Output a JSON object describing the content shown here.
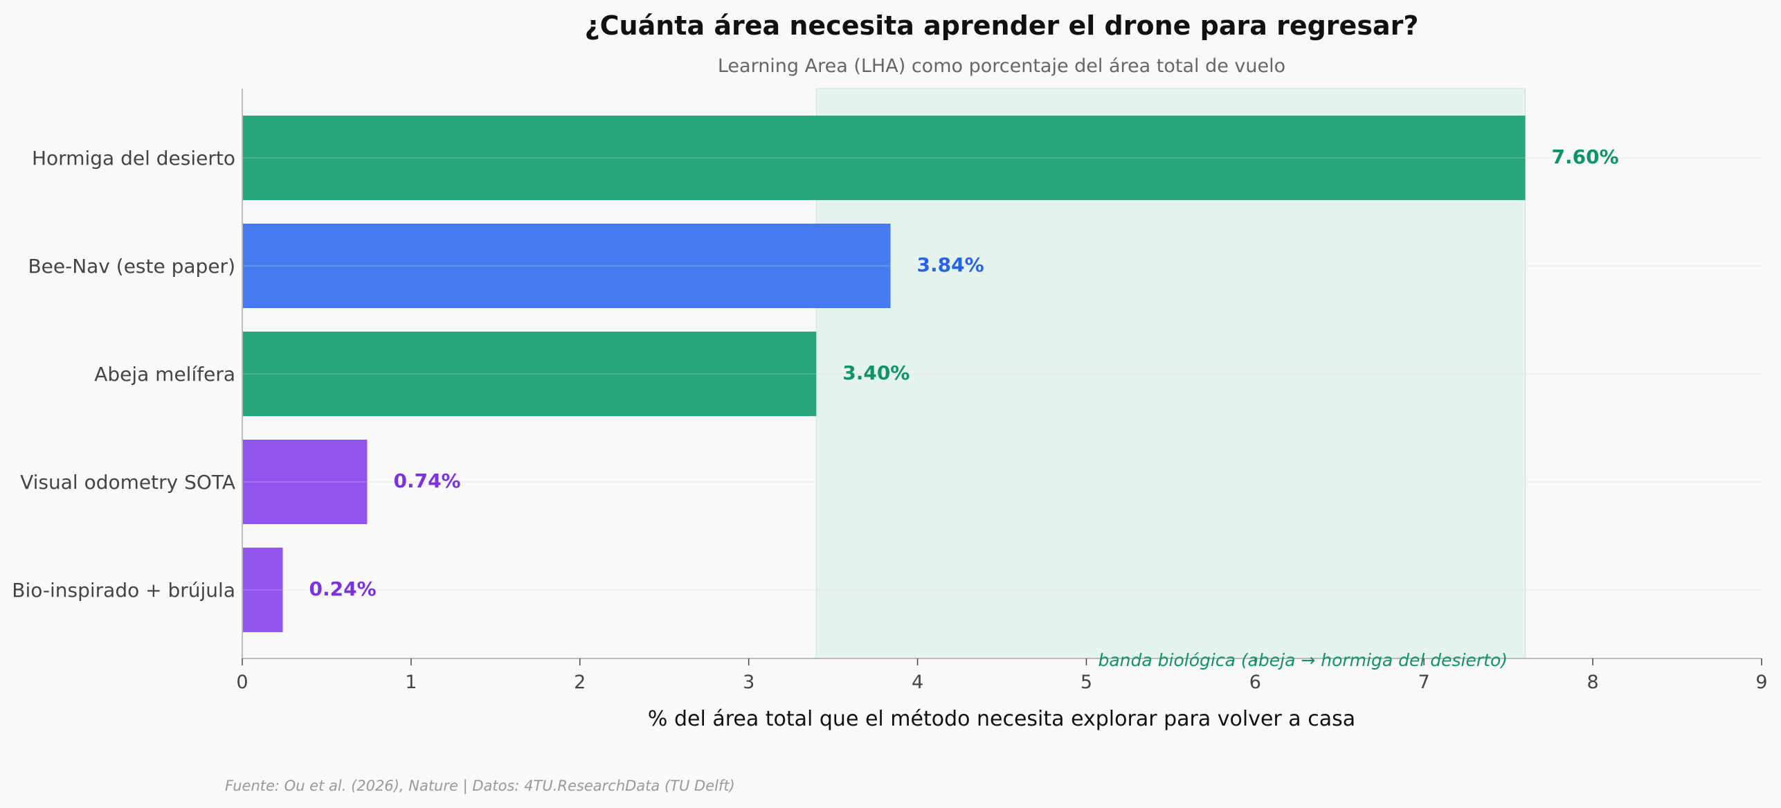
{
  "chart_data": {
    "type": "bar",
    "orientation": "horizontal",
    "title": "¿Cuánta área necesita aprender el drone para regresar?",
    "subtitle": "Learning Area (LHA) como porcentaje del área total de vuelo",
    "xlabel": "% del área total que el método necesita explorar para volver a casa",
    "ylabel": "",
    "xlim": [
      0,
      9
    ],
    "xticks": [
      0,
      1,
      2,
      3,
      4,
      5,
      6,
      7,
      8,
      9
    ],
    "categories": [
      "Hormiga del desierto",
      "Bee-Nav (este paper)",
      "Abeja melífera",
      "Visual odometry SOTA",
      "Bio-inspirado + brújula"
    ],
    "values": [
      7.6,
      3.84,
      3.4,
      0.74,
      0.24
    ],
    "value_labels": [
      "7.60%",
      "3.84%",
      "3.40%",
      "0.74%",
      "0.24%"
    ],
    "bar_colors": [
      "#2aa67f",
      "#467bf0",
      "#2aa67f",
      "#8f55ed",
      "#8f55ed"
    ],
    "label_colors": [
      "#109466",
      "#2563eb",
      "#109466",
      "#7a33de",
      "#7a33de"
    ],
    "band": {
      "from": 3.4,
      "to": 7.6,
      "color": "#d3eee2",
      "label": "banda biológica  (abeja → hormiga del desierto)",
      "label_color": "#109466"
    },
    "grid": "horizontal-light",
    "source": "Fuente: Ou et al. (2026), Nature | Datos: 4TU.ResearchData (TU Delft)"
  }
}
